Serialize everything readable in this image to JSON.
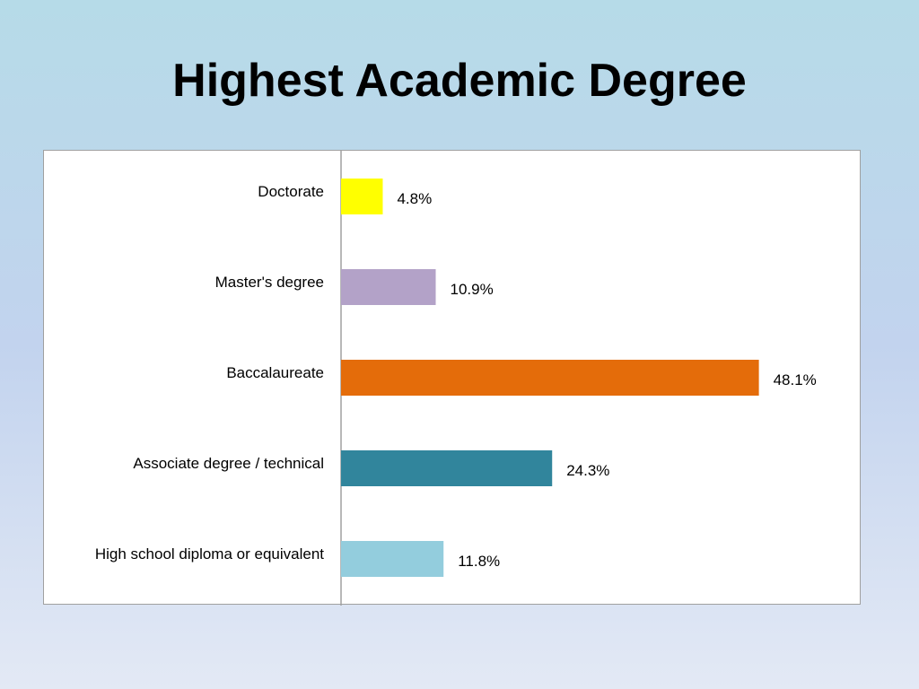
{
  "slide": {
    "title": "Highest Academic Degree"
  },
  "chart_data": {
    "type": "bar",
    "orientation": "horizontal",
    "title": "Highest Academic Degree",
    "xlabel": "",
    "ylabel": "",
    "grid": false,
    "legend": "none",
    "xlim": [
      0,
      50
    ],
    "categories": [
      "Doctorate",
      "Master's degree",
      "Baccalaureate",
      "Associate degree / technical",
      "High school diploma or equivalent"
    ],
    "values": [
      4.8,
      10.9,
      48.1,
      24.3,
      11.8
    ],
    "value_labels": [
      "4.8%",
      "10.9%",
      "48.1%",
      "24.3%",
      "11.8%"
    ],
    "colors": [
      "#ffff00",
      "#b3a2c8",
      "#e46c0a",
      "#31859c",
      "#93cddd"
    ]
  }
}
